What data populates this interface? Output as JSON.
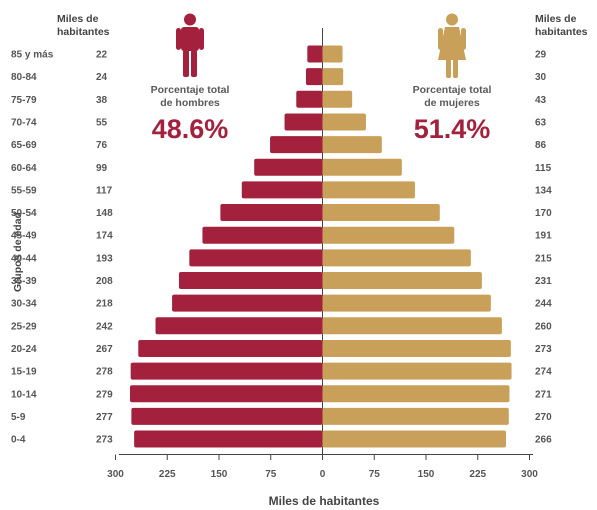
{
  "colors": {
    "male": "#a3213d",
    "female": "#c9a05a",
    "axis": "#444444",
    "text": "#555555"
  },
  "icons": {
    "male": "man-icon",
    "female": "woman-icon"
  },
  "headers": {
    "left": [
      "Miles de",
      "habitantes"
    ],
    "right": [
      "Miles de",
      "habitantes"
    ]
  },
  "stats": {
    "male": {
      "label": [
        "Porcentaje total",
        "de hombres"
      ],
      "value": "48.6%"
    },
    "female": {
      "label": [
        "Porcentaje total",
        "de mujeres"
      ],
      "value": "51.4%"
    }
  },
  "chart_data": {
    "type": "bar",
    "orientation": "horizontal",
    "subtype": "population-pyramid",
    "ylabel": "Grupos de edad",
    "xlabel": "Miles de habitantes",
    "xlim": [
      -300,
      300
    ],
    "xticks": [
      300,
      225,
      150,
      75,
      0,
      75,
      150,
      225,
      300
    ],
    "categories": [
      "85 y más",
      "80-84",
      "75-79",
      "70-74",
      "65-69",
      "60-64",
      "55-59",
      "50-54",
      "45-49",
      "40-44",
      "35-39",
      "30-34",
      "25-29",
      "20-24",
      "15-19",
      "10-14",
      "5-9",
      "0-4"
    ],
    "series": [
      {
        "name": "Hombres",
        "side": "left",
        "values": [
          22,
          24,
          38,
          55,
          76,
          99,
          117,
          148,
          174,
          193,
          208,
          218,
          242,
          267,
          278,
          279,
          277,
          273
        ]
      },
      {
        "name": "Mujeres",
        "side": "right",
        "values": [
          29,
          30,
          43,
          63,
          86,
          115,
          134,
          170,
          191,
          215,
          231,
          244,
          260,
          273,
          274,
          271,
          270,
          266
        ]
      }
    ]
  }
}
